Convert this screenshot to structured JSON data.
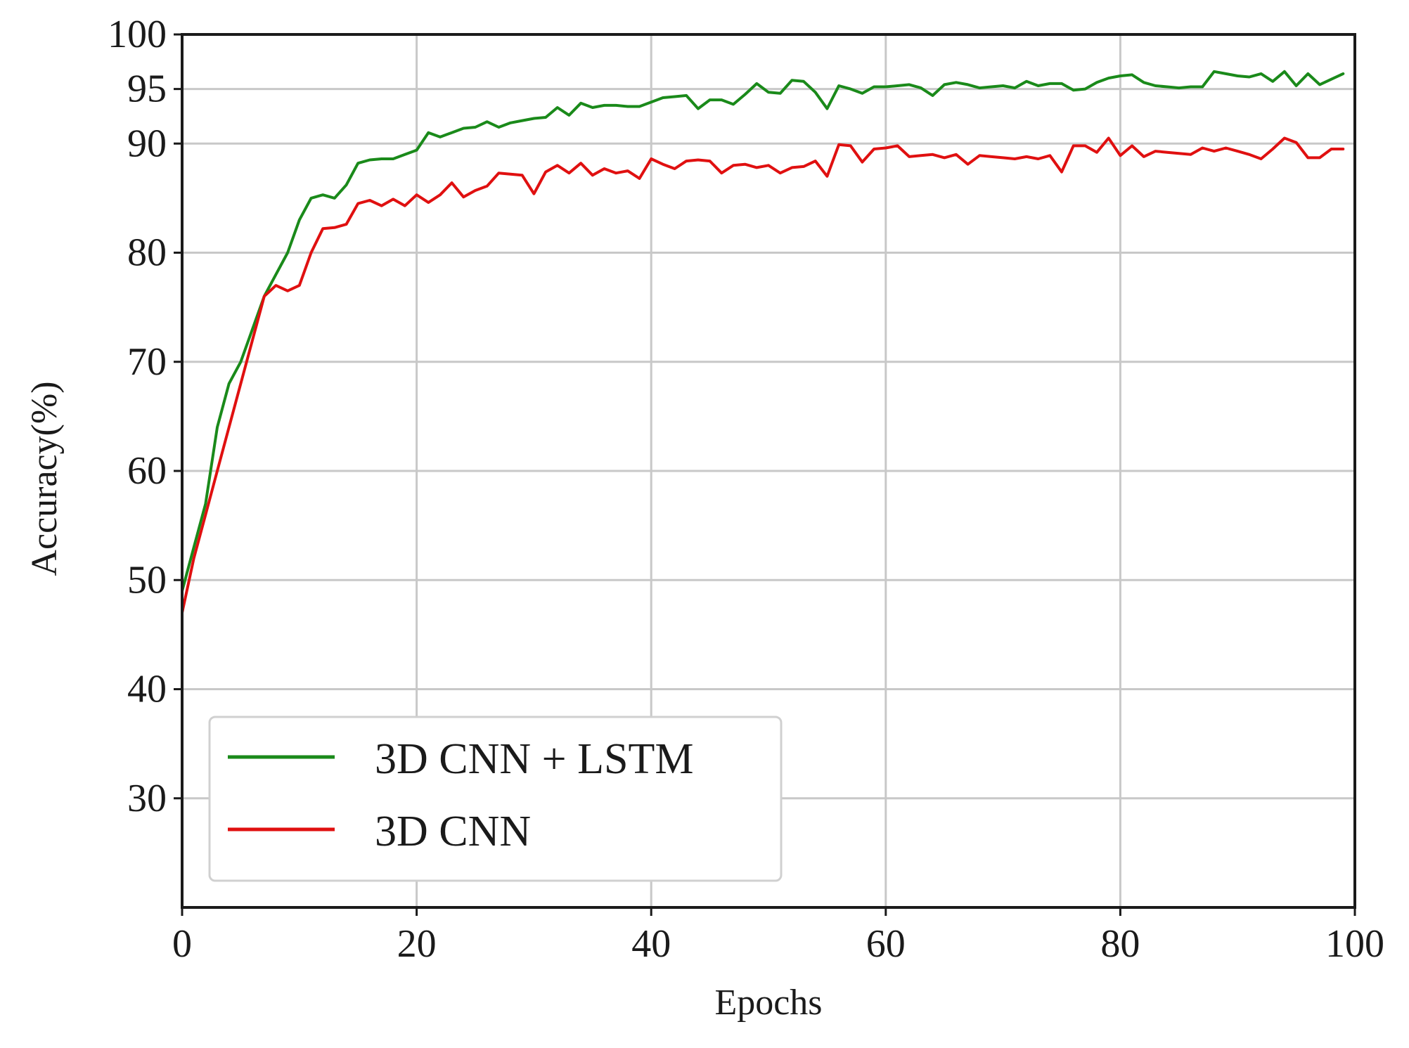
{
  "chart_data": {
    "type": "line",
    "title": "",
    "xlabel": "Epochs",
    "ylabel": "Accuracy(%)",
    "xlim": [
      0,
      100
    ],
    "ylim": [
      20,
      100
    ],
    "xticks": [
      0,
      20,
      40,
      60,
      80,
      100
    ],
    "yticks": [
      30,
      40,
      50,
      60,
      70,
      80,
      90,
      95,
      100
    ],
    "grid": true,
    "legend_position": "lower-left",
    "series": [
      {
        "name": "3D CNN + LSTM",
        "color": "#1a8a1a",
        "x": [
          0,
          1,
          2,
          3,
          4,
          5,
          6,
          7,
          8,
          9,
          10,
          11,
          12,
          13,
          14,
          15,
          16,
          17,
          18,
          19,
          20,
          21,
          22,
          23,
          24,
          25,
          26,
          27,
          28,
          29,
          30,
          31,
          32,
          33,
          34,
          35,
          36,
          37,
          38,
          39,
          40,
          41,
          42,
          43,
          44,
          45,
          46,
          47,
          48,
          49,
          50,
          51,
          52,
          53,
          54,
          55,
          56,
          57,
          58,
          59,
          60,
          61,
          62,
          63,
          64,
          65,
          66,
          67,
          68,
          69,
          70,
          71,
          72,
          73,
          74,
          75,
          76,
          77,
          78,
          79,
          80,
          81,
          82,
          83,
          84,
          85,
          86,
          87,
          88,
          89,
          90,
          91,
          92,
          93,
          94,
          95,
          96,
          97,
          98,
          99
        ],
        "y": [
          49,
          53,
          57,
          64,
          68,
          70,
          73,
          76,
          78,
          80,
          83,
          85,
          85.3,
          85,
          86.2,
          88.2,
          88.5,
          88.6,
          88.6,
          89,
          89.4,
          91,
          90.6,
          91,
          91.4,
          91.5,
          92,
          91.5,
          91.9,
          92.1,
          92.3,
          92.4,
          93.3,
          92.6,
          93.7,
          93.3,
          93.5,
          93.5,
          93.4,
          93.4,
          93.8,
          94.2,
          94.3,
          94.4,
          93.2,
          94,
          94,
          93.6,
          94.5,
          95.5,
          94.7,
          94.6,
          95.8,
          95.7,
          94.7,
          93.2,
          95.3,
          95,
          94.6,
          95.2,
          95.2,
          95.3,
          95.4,
          95.1,
          94.4,
          95.4,
          95.6,
          95.4,
          95.1,
          95.2,
          95.3,
          95.1,
          95.7,
          95.3,
          95.5,
          95.5,
          94.9,
          95,
          95.6,
          96,
          96.2,
          96.3,
          95.6,
          95.3,
          95.2,
          95.1,
          95.2,
          95.2,
          96.6,
          96.4,
          96.2,
          96.1,
          96.4,
          95.7,
          96.6,
          95.3,
          96.4,
          95.4,
          95.9,
          96.4
        ]
      },
      {
        "name": "3D CNN",
        "color": "#e01010",
        "x": [
          0,
          1,
          2,
          3,
          4,
          5,
          6,
          7,
          8,
          9,
          10,
          11,
          12,
          13,
          14,
          15,
          16,
          17,
          18,
          19,
          20,
          21,
          22,
          23,
          24,
          25,
          26,
          27,
          28,
          29,
          30,
          31,
          32,
          33,
          34,
          35,
          36,
          37,
          38,
          39,
          40,
          41,
          42,
          43,
          44,
          45,
          46,
          47,
          48,
          49,
          50,
          51,
          52,
          53,
          54,
          55,
          56,
          57,
          58,
          59,
          60,
          61,
          62,
          63,
          64,
          65,
          66,
          67,
          68,
          69,
          70,
          71,
          72,
          73,
          74,
          75,
          76,
          77,
          78,
          79,
          80,
          81,
          82,
          83,
          84,
          85,
          86,
          87,
          88,
          89,
          90,
          91,
          92,
          93,
          94,
          95,
          96,
          97,
          98,
          99
        ],
        "y": [
          47,
          52,
          56,
          60,
          64,
          68,
          72,
          76,
          77,
          76.5,
          77,
          80,
          82.2,
          82.3,
          82.6,
          84.5,
          84.8,
          84.3,
          84.9,
          84.3,
          85.3,
          84.6,
          85.3,
          86.4,
          85.1,
          85.7,
          86.1,
          87.3,
          87.2,
          87.1,
          85.4,
          87.4,
          88,
          87.3,
          88.2,
          87.1,
          87.7,
          87.3,
          87.5,
          86.8,
          88.6,
          88.1,
          87.7,
          88.4,
          88.5,
          88.4,
          87.3,
          88,
          88.1,
          87.8,
          88,
          87.3,
          87.8,
          87.9,
          88.4,
          87,
          89.9,
          89.8,
          88.3,
          89.5,
          89.6,
          89.8,
          88.8,
          88.9,
          89,
          88.7,
          89,
          88.1,
          88.9,
          88.8,
          88.7,
          88.6,
          88.8,
          88.6,
          88.9,
          87.4,
          89.8,
          89.8,
          89.2,
          90.5,
          88.9,
          89.8,
          88.8,
          89.3,
          89.2,
          89.1,
          89,
          89.6,
          89.3,
          89.6,
          89.3,
          89,
          88.6,
          89.5,
          90.5,
          90.1,
          88.7,
          88.7,
          89.5,
          89.5
        ]
      }
    ]
  }
}
